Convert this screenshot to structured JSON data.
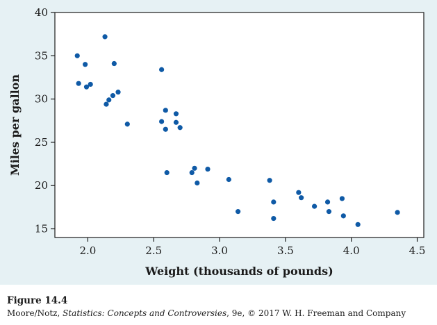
{
  "chart_data": {
    "type": "scatter",
    "xlabel": "Weight (thousands of pounds)",
    "ylabel": "Miles per gallon",
    "xlim": [
      1.75,
      4.55
    ],
    "ylim": [
      14,
      40
    ],
    "xticks": [
      2.0,
      2.5,
      3.0,
      3.5,
      4.0,
      4.5
    ],
    "xtick_labels": [
      "2.0",
      "2.5",
      "3.0",
      "3.5",
      "4.0",
      "4.5"
    ],
    "yticks": [
      15,
      20,
      25,
      30,
      35,
      40
    ],
    "ytick_labels": [
      "15",
      "20",
      "25",
      "30",
      "35",
      "40"
    ],
    "grid": false,
    "legend": "none",
    "marker_color": "#0f5aa6",
    "points": [
      {
        "x": 1.92,
        "y": 35.0
      },
      {
        "x": 1.93,
        "y": 31.8
      },
      {
        "x": 1.98,
        "y": 34.0
      },
      {
        "x": 1.99,
        "y": 31.4
      },
      {
        "x": 2.02,
        "y": 31.7
      },
      {
        "x": 2.13,
        "y": 37.2
      },
      {
        "x": 2.14,
        "y": 29.4
      },
      {
        "x": 2.16,
        "y": 29.9
      },
      {
        "x": 2.19,
        "y": 30.4
      },
      {
        "x": 2.2,
        "y": 34.1
      },
      {
        "x": 2.23,
        "y": 30.8
      },
      {
        "x": 2.3,
        "y": 27.1
      },
      {
        "x": 2.56,
        "y": 33.4
      },
      {
        "x": 2.56,
        "y": 27.4
      },
      {
        "x": 2.59,
        "y": 26.5
      },
      {
        "x": 2.59,
        "y": 28.7
      },
      {
        "x": 2.6,
        "y": 21.5
      },
      {
        "x": 2.67,
        "y": 28.3
      },
      {
        "x": 2.67,
        "y": 27.3
      },
      {
        "x": 2.7,
        "y": 26.7
      },
      {
        "x": 2.79,
        "y": 21.5
      },
      {
        "x": 2.81,
        "y": 22.0
      },
      {
        "x": 2.83,
        "y": 20.3
      },
      {
        "x": 2.91,
        "y": 21.9
      },
      {
        "x": 3.07,
        "y": 20.7
      },
      {
        "x": 3.14,
        "y": 17.0
      },
      {
        "x": 3.38,
        "y": 20.6
      },
      {
        "x": 3.41,
        "y": 18.1
      },
      {
        "x": 3.41,
        "y": 16.2
      },
      {
        "x": 3.6,
        "y": 19.2
      },
      {
        "x": 3.62,
        "y": 18.6
      },
      {
        "x": 3.72,
        "y": 17.6
      },
      {
        "x": 3.82,
        "y": 18.1
      },
      {
        "x": 3.83,
        "y": 17.0
      },
      {
        "x": 3.93,
        "y": 18.5
      },
      {
        "x": 3.94,
        "y": 16.5
      },
      {
        "x": 4.05,
        "y": 15.5
      },
      {
        "x": 4.35,
        "y": 16.9
      }
    ]
  },
  "caption": {
    "figure_label": "Figure 14.4",
    "credit_authors": "Moore/Notz, ",
    "credit_book": "Statistics: Concepts and Controversies",
    "credit_rest": ", 9e, © 2017 W. H. Freeman and Company"
  }
}
